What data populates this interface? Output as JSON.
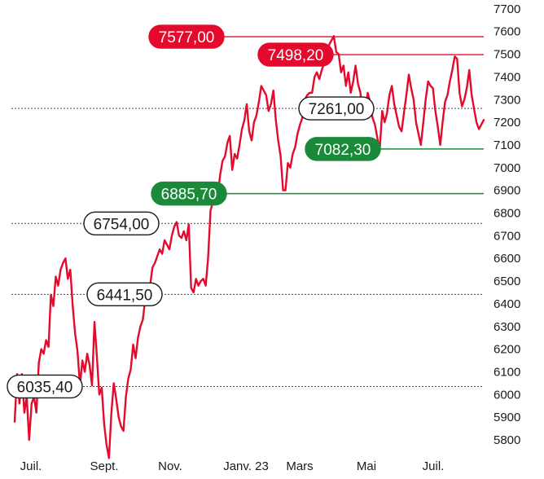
{
  "chart_data": {
    "type": "line",
    "title": "",
    "xlabel": "",
    "ylabel": "",
    "ylim": [
      5700,
      7750
    ],
    "y_ticks": [
      5800,
      5900,
      6000,
      6100,
      6200,
      6300,
      6400,
      6500,
      6600,
      6700,
      6800,
      6900,
      7000,
      7100,
      7200,
      7300,
      7400,
      7500,
      7600,
      7700
    ],
    "x_tick_labels": [
      "Juil.",
      "Sept.",
      "Nov.",
      "Janv. 23",
      "Mars",
      "Mai",
      "Juil."
    ],
    "grid": false,
    "series": [
      {
        "color": "#e30a2c",
        "values": [
          5880,
          6090,
          5960,
          6090,
          5920,
          5990,
          5800,
          5960,
          5990,
          5920,
          6140,
          6200,
          6180,
          6240,
          6210,
          6440,
          6390,
          6520,
          6480,
          6550,
          6580,
          6600,
          6510,
          6550,
          6390,
          6270,
          6190,
          6040,
          6150,
          6100,
          6180,
          6130,
          6040,
          6320,
          6170,
          6000,
          6030,
          5870,
          5780,
          5720,
          5920,
          6050,
          5980,
          5900,
          5860,
          5840,
          5990,
          6070,
          6110,
          6220,
          6160,
          6250,
          6300,
          6330,
          6420,
          6450,
          6480,
          6560,
          6580,
          6610,
          6640,
          6620,
          6680,
          6660,
          6640,
          6700,
          6740,
          6760,
          6700,
          6690,
          6720,
          6680,
          6750,
          6470,
          6450,
          6510,
          6480,
          6500,
          6510,
          6480,
          6600,
          6810,
          6850,
          6920,
          6880,
          6970,
          7030,
          7050,
          7110,
          7140,
          6990,
          7060,
          7040,
          7100,
          7170,
          7210,
          7280,
          7160,
          7120,
          7200,
          7230,
          7290,
          7360,
          7340,
          7320,
          7250,
          7280,
          7340,
          7210,
          7120,
          7050,
          6900,
          6900,
          7020,
          7000,
          7060,
          7090,
          7150,
          7190,
          7220,
          7300,
          7320,
          7330,
          7330,
          7400,
          7420,
          7390,
          7430,
          7460,
          7520,
          7540,
          7560,
          7580,
          7510,
          7500,
          7420,
          7450,
          7360,
          7420,
          7330,
          7380,
          7450,
          7370,
          7330,
          7220,
          7250,
          7330,
          7290,
          7220,
          7190,
          7130,
          7080,
          7250,
          7200,
          7240,
          7320,
          7360,
          7280,
          7230,
          7180,
          7160,
          7240,
          7320,
          7410,
          7350,
          7300,
          7200,
          7150,
          7100,
          7200,
          7300,
          7380,
          7360,
          7350,
          7250,
          7180,
          7100,
          7200,
          7290,
          7320,
          7380,
          7430,
          7490,
          7480,
          7330,
          7270,
          7300,
          7350,
          7430,
          7320,
          7260,
          7200,
          7170,
          7190,
          7210
        ]
      }
    ],
    "levels": [
      {
        "value": 7577.0,
        "label": "7577,00",
        "style": "solid",
        "color": "#e30a2c",
        "badge": "red"
      },
      {
        "value": 7498.2,
        "label": "7498,20",
        "style": "solid",
        "color": "#e30a2c",
        "badge": "red"
      },
      {
        "value": 7261.0,
        "label": "7261,00",
        "style": "dotted",
        "color": "#444444",
        "badge": "outline"
      },
      {
        "value": 7082.3,
        "label": "7082,30",
        "style": "solid",
        "color": "#1a8a3a",
        "badge": "green"
      },
      {
        "value": 6885.7,
        "label": "6885,70",
        "style": "solid",
        "color": "#1a8a3a",
        "badge": "green"
      },
      {
        "value": 6754.0,
        "label": "6754,00",
        "style": "dotted",
        "color": "#444444",
        "badge": "outline"
      },
      {
        "value": 6441.5,
        "label": "6441,50",
        "style": "dotted",
        "color": "#444444",
        "badge": "outline"
      },
      {
        "value": 6035.4,
        "label": "6035,40",
        "style": "dotted",
        "color": "#444444",
        "badge": "outline"
      }
    ],
    "legend": "none",
    "y_axis_position": "right"
  }
}
